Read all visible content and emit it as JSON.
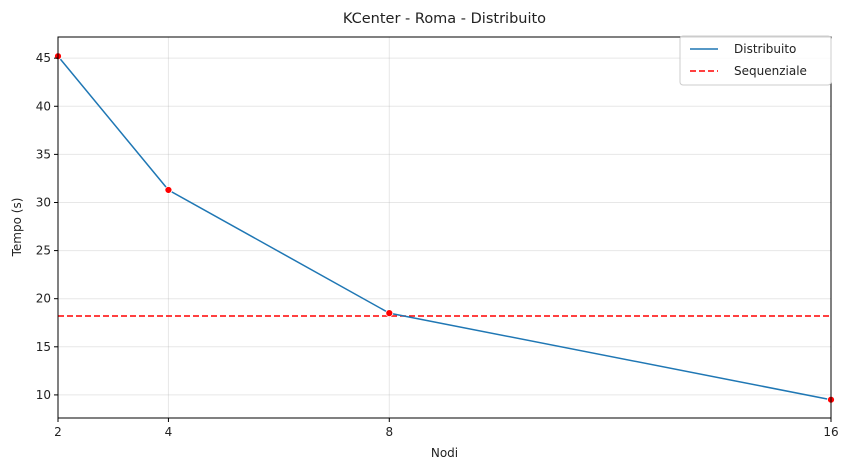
{
  "chart_data": {
    "type": "line",
    "title": "KCenter - Roma - Distribuito",
    "xlabel": "Nodi",
    "ylabel": "Tempo (s)",
    "x": [
      2,
      4,
      8,
      16
    ],
    "x_tick_labels": [
      "2",
      "4",
      "8",
      "16"
    ],
    "xlim": [
      2,
      16
    ],
    "y_ticks": [
      10,
      15,
      20,
      25,
      30,
      35,
      40,
      45
    ],
    "y_tick_labels": [
      "10",
      "15",
      "20",
      "25",
      "30",
      "35",
      "40",
      "45"
    ],
    "ylim": [
      7.6,
      47.2
    ],
    "grid": true,
    "legend_position": "top-right",
    "series": [
      {
        "name": "Distribuito",
        "style": "solid",
        "color": "#1f77b4",
        "marker_color": "#ff0000",
        "values": [
          45.2,
          31.3,
          18.5,
          9.5
        ]
      },
      {
        "name": "Sequenziale",
        "style": "dashed",
        "color": "#ff0000",
        "constant": 18.2
      }
    ]
  }
}
